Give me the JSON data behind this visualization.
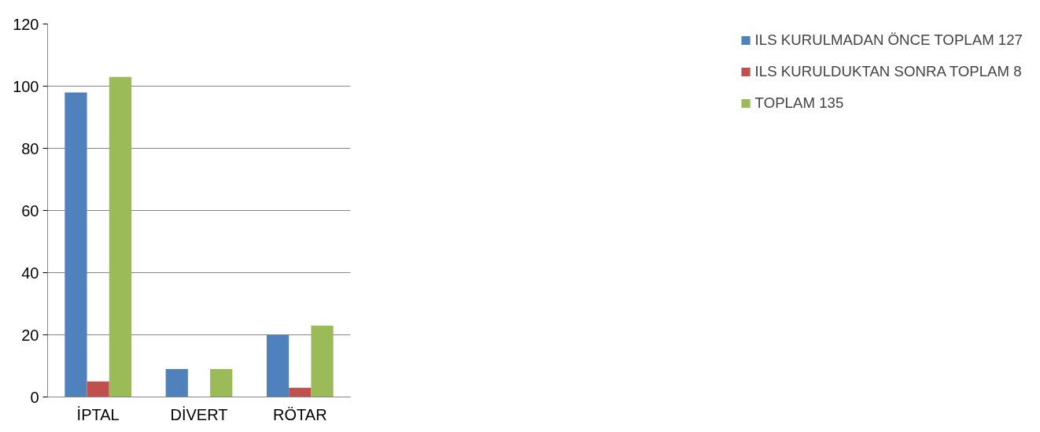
{
  "chart_data": {
    "type": "bar",
    "categories": [
      "İPTAL",
      "DİVERT",
      "RÖTAR"
    ],
    "series": [
      {
        "name": "ILS KURULMADAN ÖNCE TOPLAM 127",
        "color": "#4f81bd",
        "values": [
          98,
          9,
          20
        ]
      },
      {
        "name": "ILS KURULDUKTAN SONRA TOPLAM 8",
        "color": "#c0504d",
        "values": [
          5,
          0,
          3
        ]
      },
      {
        "name": "TOPLAM 135",
        "color": "#9bbb59",
        "values": [
          103,
          9,
          23
        ]
      }
    ],
    "ylim": [
      0,
      120
    ],
    "yticks": [
      0,
      20,
      40,
      60,
      80,
      100,
      120
    ],
    "grid": "y",
    "legend": "right"
  }
}
